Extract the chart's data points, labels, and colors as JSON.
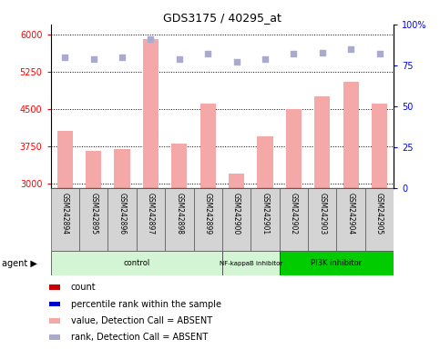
{
  "title": "GDS3175 / 40295_at",
  "samples": [
    "GSM242894",
    "GSM242895",
    "GSM242896",
    "GSM242897",
    "GSM242898",
    "GSM242899",
    "GSM242900",
    "GSM242901",
    "GSM242902",
    "GSM242903",
    "GSM242904",
    "GSM242905"
  ],
  "bar_values": [
    4050,
    3650,
    3700,
    5900,
    3800,
    4600,
    3200,
    3950,
    4500,
    4750,
    5050,
    4600
  ],
  "rank_dots": [
    80,
    79,
    80,
    91,
    79,
    82,
    77,
    79,
    82,
    83,
    85,
    82
  ],
  "ylim_left": [
    2900,
    6200
  ],
  "ylim_right": [
    0,
    100
  ],
  "yticks_left": [
    3000,
    3750,
    4500,
    5250,
    6000
  ],
  "yticks_right": [
    0,
    25,
    50,
    75,
    100
  ],
  "bar_color": "#f4a9a8",
  "dot_color": "#aaaacc",
  "groups": [
    {
      "label": "control",
      "start": 0,
      "end": 6,
      "color": "#d4f5d4"
    },
    {
      "label": "NF-kappaB inhibitor",
      "start": 6,
      "end": 8,
      "color": "#d4f5d4"
    },
    {
      "label": "PI3K inhibitor",
      "start": 8,
      "end": 12,
      "color": "#00cc00"
    }
  ],
  "legend_items": [
    {
      "color": "#cc0000",
      "label": "count"
    },
    {
      "color": "#0000cc",
      "label": "percentile rank within the sample"
    },
    {
      "color": "#f4a9a8",
      "label": "value, Detection Call = ABSENT"
    },
    {
      "color": "#aaaacc",
      "label": "rank, Detection Call = ABSENT"
    }
  ]
}
